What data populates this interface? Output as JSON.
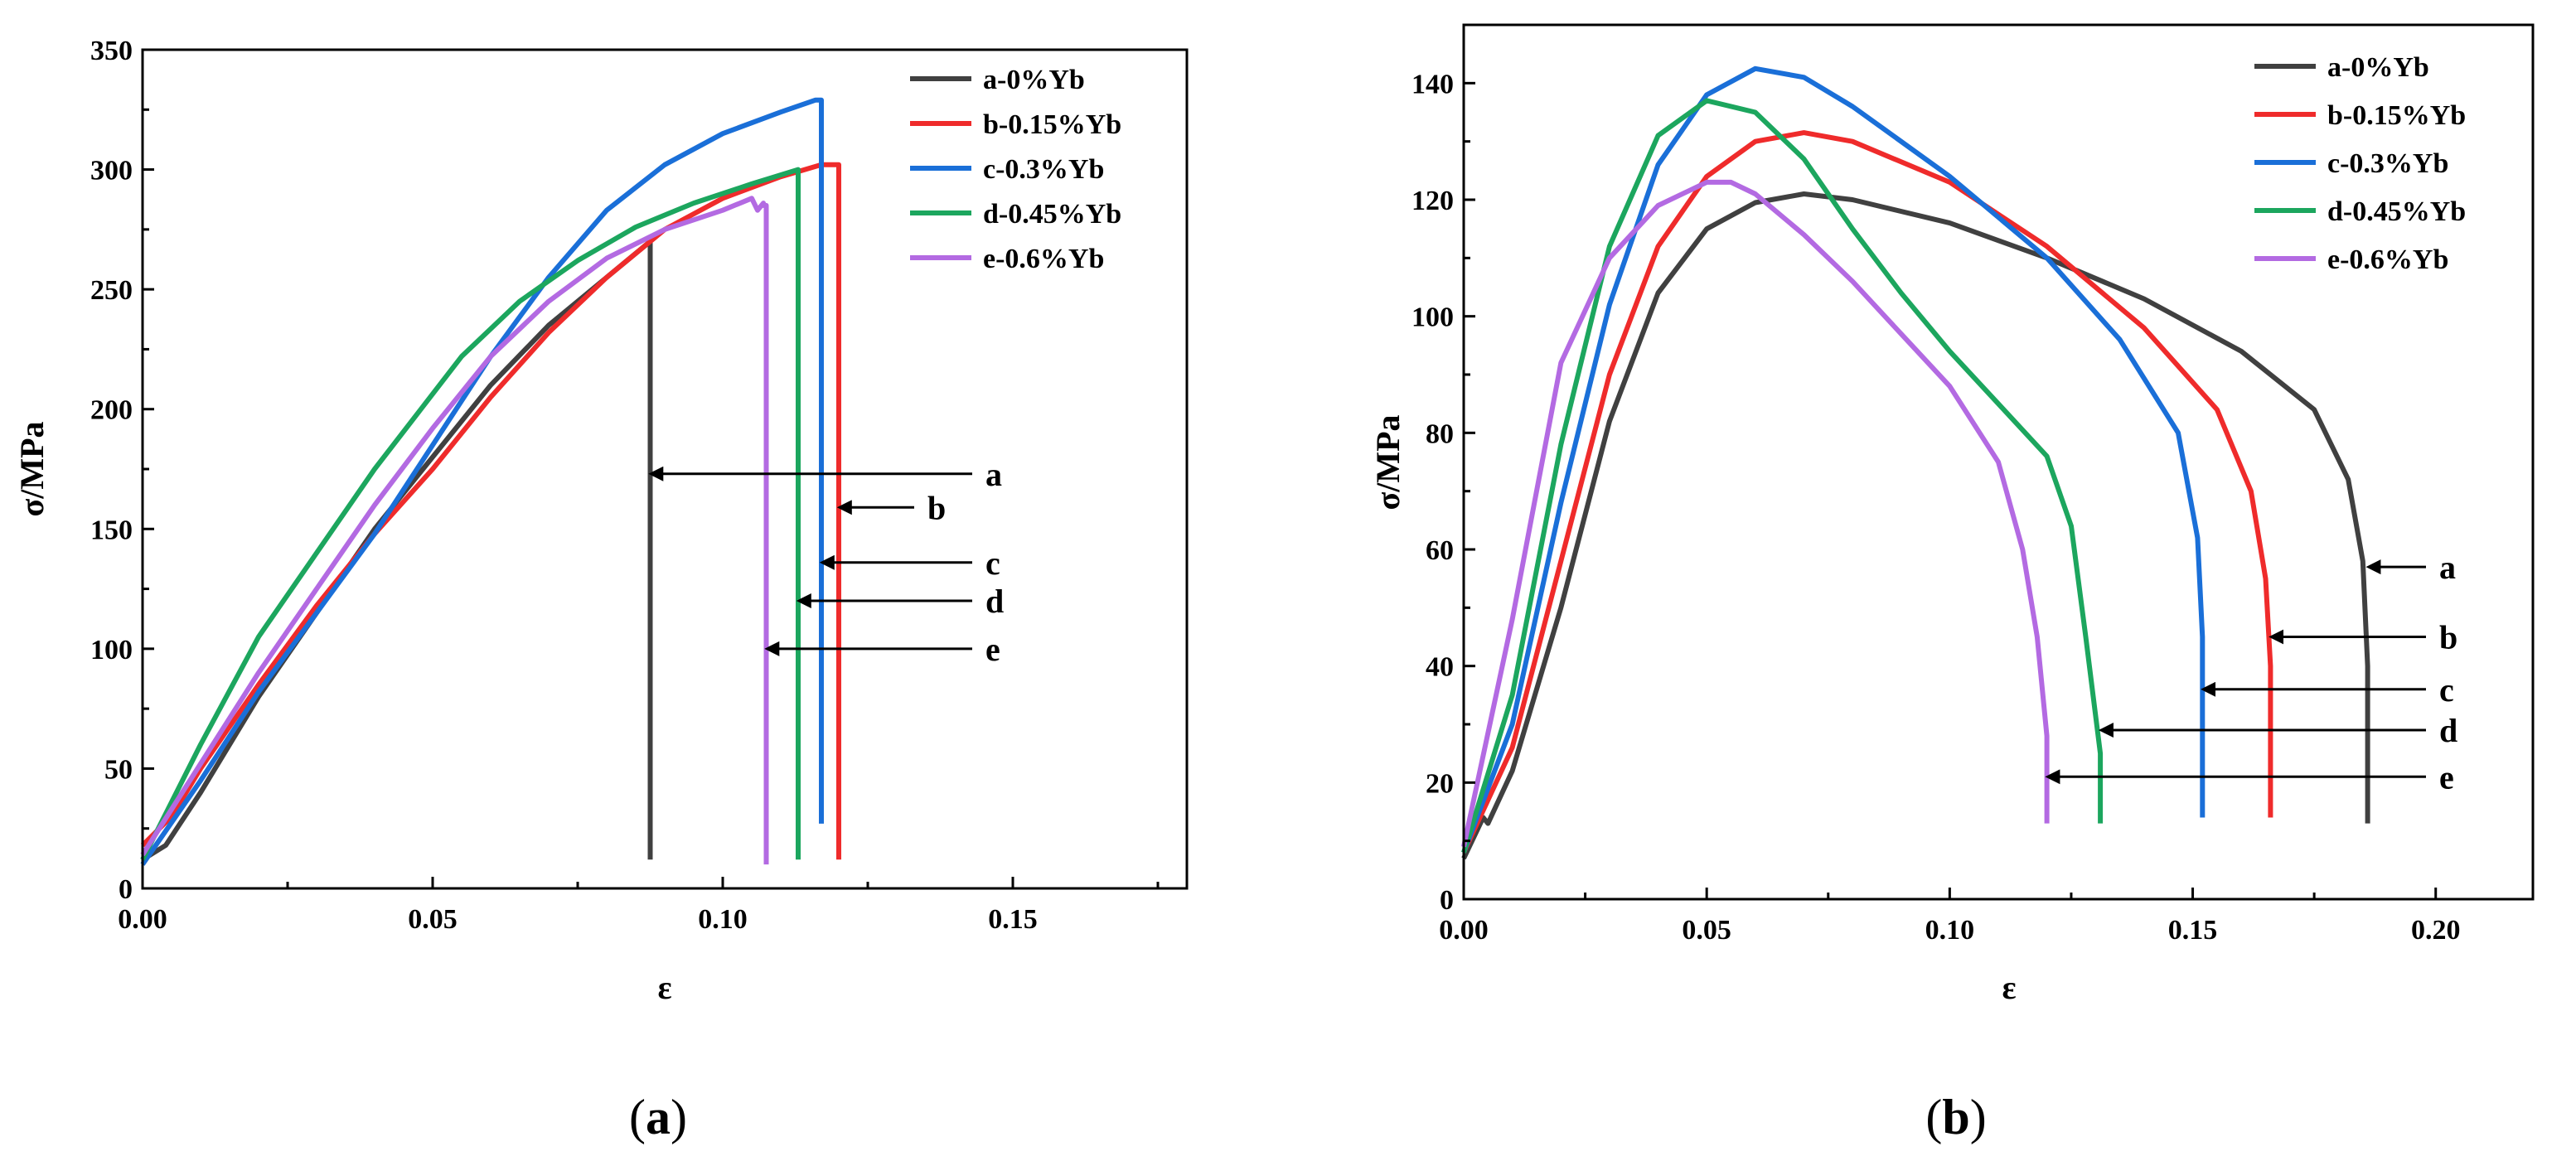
{
  "chart_data": [
    {
      "type": "line",
      "caption": "a",
      "xlabel": "ε",
      "ylabel": "σ/MPa",
      "xlim": [
        0,
        0.18
      ],
      "ylim": [
        0,
        350
      ],
      "xticks": [
        0.0,
        0.05,
        0.1,
        0.15
      ],
      "xtick_labels": [
        "0.00",
        "0.05",
        "0.10",
        "0.15"
      ],
      "yticks": [
        0,
        50,
        100,
        150,
        200,
        250,
        300,
        350
      ],
      "ytick_labels": [
        "0",
        "50",
        "100",
        "150",
        "200",
        "250",
        "300",
        "350"
      ],
      "legend_position": "top-right",
      "series": [
        {
          "name": "a-0%Yb",
          "color": "#404040",
          "points": [
            [
              0,
              12
            ],
            [
              0.004,
              18
            ],
            [
              0.01,
              40
            ],
            [
              0.02,
              80
            ],
            [
              0.03,
              115
            ],
            [
              0.04,
              150
            ],
            [
              0.05,
              180
            ],
            [
              0.06,
              210
            ],
            [
              0.07,
              235
            ],
            [
              0.08,
              255
            ],
            [
              0.0875,
              270
            ],
            [
              0.0875,
              12
            ]
          ]
        },
        {
          "name": "b-0.15%Yb",
          "color": "#ef2b2b",
          "points": [
            [
              0,
              18
            ],
            [
              0.005,
              30
            ],
            [
              0.01,
              50
            ],
            [
              0.02,
              85
            ],
            [
              0.03,
              118
            ],
            [
              0.04,
              148
            ],
            [
              0.05,
              175
            ],
            [
              0.06,
              205
            ],
            [
              0.07,
              232
            ],
            [
              0.08,
              255
            ],
            [
              0.09,
              275
            ],
            [
              0.1,
              288
            ],
            [
              0.11,
              297
            ],
            [
              0.117,
              302
            ],
            [
              0.12,
              302
            ],
            [
              0.12,
              12
            ]
          ]
        },
        {
          "name": "c-0.3%Yb",
          "color": "#1a6fd8",
          "points": [
            [
              0,
              10
            ],
            [
              0.01,
              45
            ],
            [
              0.02,
              82
            ],
            [
              0.03,
              115
            ],
            [
              0.04,
              148
            ],
            [
              0.05,
              185
            ],
            [
              0.06,
              222
            ],
            [
              0.07,
              255
            ],
            [
              0.08,
              283
            ],
            [
              0.09,
              302
            ],
            [
              0.1,
              315
            ],
            [
              0.11,
              324
            ],
            [
              0.116,
              329
            ],
            [
              0.117,
              329
            ],
            [
              0.117,
              27
            ]
          ]
        },
        {
          "name": "d-0.45%Yb",
          "color": "#1ca65e",
          "points": [
            [
              0,
              12
            ],
            [
              0.01,
              60
            ],
            [
              0.02,
              105
            ],
            [
              0.03,
              140
            ],
            [
              0.04,
              175
            ],
            [
              0.055,
              222
            ],
            [
              0.065,
              245
            ],
            [
              0.075,
              262
            ],
            [
              0.085,
              276
            ],
            [
              0.095,
              286
            ],
            [
              0.105,
              294
            ],
            [
              0.113,
              300
            ],
            [
              0.113,
              12
            ]
          ]
        },
        {
          "name": "e-0.6%Yb",
          "color": "#b36ae2",
          "points": [
            [
              0,
              14
            ],
            [
              0.01,
              52
            ],
            [
              0.02,
              90
            ],
            [
              0.03,
              125
            ],
            [
              0.04,
              160
            ],
            [
              0.05,
              192
            ],
            [
              0.06,
              222
            ],
            [
              0.07,
              245
            ],
            [
              0.08,
              263
            ],
            [
              0.09,
              275
            ],
            [
              0.1,
              283
            ],
            [
              0.105,
              288
            ],
            [
              0.106,
              283
            ],
            [
              0.107,
              286
            ],
            [
              0.107,
              285
            ],
            [
              0.1075,
              285
            ],
            [
              0.1075,
              10
            ]
          ]
        }
      ],
      "annotations": [
        {
          "label": "a",
          "arrow_from_x": 0.143,
          "arrow_to_x": 0.0875,
          "y": 173
        },
        {
          "label": "b",
          "arrow_from_x": 0.133,
          "arrow_to_x": 0.12,
          "y": 159
        },
        {
          "label": "c",
          "arrow_from_x": 0.143,
          "arrow_to_x": 0.117,
          "y": 136
        },
        {
          "label": "d",
          "arrow_from_x": 0.143,
          "arrow_to_x": 0.113,
          "y": 120
        },
        {
          "label": "e",
          "arrow_from_x": 0.143,
          "arrow_to_x": 0.1075,
          "y": 100
        }
      ]
    },
    {
      "type": "line",
      "caption": "b",
      "xlabel": "ε",
      "ylabel": "σ/MPa",
      "xlim": [
        0,
        0.22
      ],
      "ylim": [
        0,
        150
      ],
      "xticks": [
        0.0,
        0.05,
        0.1,
        0.15,
        0.2
      ],
      "xtick_labels": [
        "0.00",
        "0.05",
        "0.10",
        "0.15",
        "0.20"
      ],
      "yticks": [
        0,
        20,
        40,
        60,
        80,
        100,
        120,
        140
      ],
      "ytick_labels": [
        "0",
        "20",
        "40",
        "60",
        "80",
        "100",
        "120",
        "140"
      ],
      "legend_position": "top-right",
      "series": [
        {
          "name": "a-0%Yb",
          "color": "#404040",
          "points": [
            [
              0,
              7
            ],
            [
              0.004,
              14
            ],
            [
              0.005,
              13
            ],
            [
              0.01,
              22
            ],
            [
              0.02,
              50
            ],
            [
              0.03,
              82
            ],
            [
              0.04,
              104
            ],
            [
              0.05,
              115
            ],
            [
              0.06,
              119.5
            ],
            [
              0.07,
              121
            ],
            [
              0.08,
              120
            ],
            [
              0.1,
              116
            ],
            [
              0.12,
              110
            ],
            [
              0.14,
              103
            ],
            [
              0.16,
              94
            ],
            [
              0.175,
              84
            ],
            [
              0.182,
              72
            ],
            [
              0.185,
              58
            ],
            [
              0.186,
              40
            ],
            [
              0.186,
              13
            ]
          ]
        },
        {
          "name": "b-0.15%Yb",
          "color": "#ef2b2b",
          "points": [
            [
              0,
              8
            ],
            [
              0.01,
              26
            ],
            [
              0.02,
              58
            ],
            [
              0.03,
              90
            ],
            [
              0.04,
              112
            ],
            [
              0.05,
              124
            ],
            [
              0.06,
              130
            ],
            [
              0.07,
              131.5
            ],
            [
              0.08,
              130
            ],
            [
              0.1,
              123
            ],
            [
              0.12,
              112
            ],
            [
              0.14,
              98
            ],
            [
              0.155,
              84
            ],
            [
              0.162,
              70
            ],
            [
              0.165,
              55
            ],
            [
              0.166,
              40
            ],
            [
              0.166,
              14
            ]
          ]
        },
        {
          "name": "c-0.3%Yb",
          "color": "#1a6fd8",
          "points": [
            [
              0,
              8
            ],
            [
              0.01,
              30
            ],
            [
              0.02,
              68
            ],
            [
              0.03,
              102
            ],
            [
              0.04,
              126
            ],
            [
              0.05,
              138
            ],
            [
              0.06,
              142.5
            ],
            [
              0.07,
              141
            ],
            [
              0.08,
              136
            ],
            [
              0.1,
              124
            ],
            [
              0.12,
              110
            ],
            [
              0.135,
              96
            ],
            [
              0.147,
              80
            ],
            [
              0.151,
              62
            ],
            [
              0.152,
              45
            ],
            [
              0.152,
              14
            ]
          ]
        },
        {
          "name": "d-0.45%Yb",
          "color": "#1ca65e",
          "points": [
            [
              0,
              8
            ],
            [
              0.01,
              35
            ],
            [
              0.02,
              78
            ],
            [
              0.03,
              112
            ],
            [
              0.04,
              131
            ],
            [
              0.05,
              137
            ],
            [
              0.06,
              135
            ],
            [
              0.07,
              127
            ],
            [
              0.08,
              115
            ],
            [
              0.09,
              104
            ],
            [
              0.1,
              94
            ],
            [
              0.11,
              85
            ],
            [
              0.12,
              76
            ],
            [
              0.125,
              64
            ],
            [
              0.128,
              45
            ],
            [
              0.131,
              25
            ],
            [
              0.131,
              13
            ]
          ]
        },
        {
          "name": "e-0.6%Yb",
          "color": "#b36ae2",
          "points": [
            [
              0,
              9
            ],
            [
              0.01,
              48
            ],
            [
              0.02,
              92
            ],
            [
              0.03,
              110
            ],
            [
              0.04,
              119
            ],
            [
              0.05,
              123
            ],
            [
              0.055,
              123
            ],
            [
              0.06,
              121
            ],
            [
              0.07,
              114
            ],
            [
              0.08,
              106
            ],
            [
              0.09,
              97
            ],
            [
              0.1,
              88
            ],
            [
              0.11,
              75
            ],
            [
              0.115,
              60
            ],
            [
              0.118,
              45
            ],
            [
              0.12,
              28
            ],
            [
              0.12,
              13
            ]
          ]
        }
      ],
      "annotations": [
        {
          "label": "a",
          "arrow_from_x": 0.198,
          "arrow_to_x": 0.186,
          "y": 57
        },
        {
          "label": "b",
          "arrow_from_x": 0.198,
          "arrow_to_x": 0.166,
          "y": 45
        },
        {
          "label": "c",
          "arrow_from_x": 0.198,
          "arrow_to_x": 0.152,
          "y": 36
        },
        {
          "label": "d",
          "arrow_from_x": 0.198,
          "arrow_to_x": 0.131,
          "y": 29
        },
        {
          "label": "e",
          "arrow_from_x": 0.198,
          "arrow_to_x": 0.12,
          "y": 21
        }
      ]
    }
  ],
  "captions": [
    {
      "open": "(",
      "letter": "a",
      "close": ")"
    },
    {
      "open": "(",
      "letter": "b",
      "close": ")"
    }
  ]
}
